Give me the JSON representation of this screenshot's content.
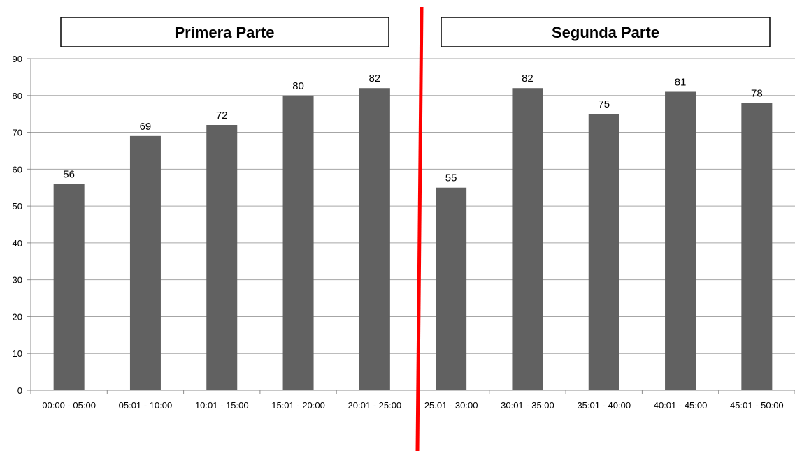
{
  "sections": [
    {
      "title": "Primera Parte"
    },
    {
      "title": "Segunda Parte"
    }
  ],
  "colors": {
    "bar": "#616161",
    "grid": "#a6a6a6",
    "divider": "#ff0000",
    "box_border": "#000000"
  },
  "chart_data": {
    "type": "bar",
    "title": "",
    "xlabel": "",
    "ylabel": "",
    "ylim": [
      0,
      90
    ],
    "yticks": [
      0,
      10,
      20,
      30,
      40,
      50,
      60,
      70,
      80,
      90
    ],
    "grid": true,
    "categories": [
      "00:00 - 05:00",
      "05:01 - 10:00",
      "10:01 - 15:00",
      "15:01 - 20:00",
      "20:01 - 25:00",
      "25.01 - 30:00",
      "30:01 - 35:00",
      "35:01 - 40:00",
      "40:01 - 45:00",
      "45:01 - 50:00"
    ],
    "values": [
      56,
      69,
      72,
      80,
      82,
      55,
      82,
      75,
      81,
      78
    ]
  }
}
